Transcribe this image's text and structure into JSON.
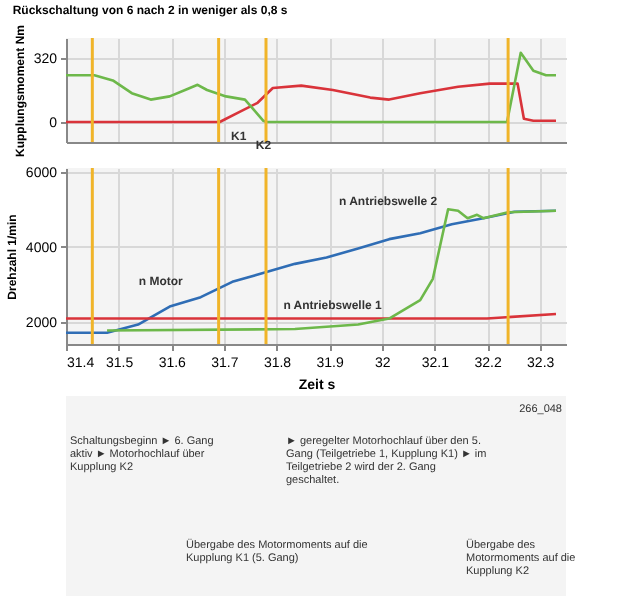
{
  "chart_data": [
    {
      "type": "line",
      "title": "Rückschaltung von 6 nach 2 in weniger als 0,8 s",
      "ylabel": "Kupplungsmoment Nm",
      "xlim": [
        31.4,
        32.35
      ],
      "xticks": [
        31.4,
        31.5,
        31.6,
        31.7,
        31.8,
        31.9,
        32,
        32.1,
        32.2,
        32.3
      ],
      "ylim": [
        -100,
        420
      ],
      "yticks": [
        0,
        320
      ],
      "grid": true,
      "tick_labels": "y",
      "ref_lines": [
        {
          "axis": "x",
          "value": 31.45,
          "color": "#f0b429"
        },
        {
          "axis": "x",
          "value": 31.69,
          "color": "#f0b429"
        },
        {
          "axis": "x",
          "value": 31.78,
          "color": "#f0b429"
        },
        {
          "axis": "x",
          "value": 32.24,
          "color": "#f0b429"
        }
      ],
      "series": [
        {
          "name": "K1",
          "color": "#d9333a",
          "x": [
            31.4,
            31.692,
            31.728,
            31.764,
            31.793,
            31.847,
            31.907,
            31.978,
            32.014,
            32.073,
            32.145,
            32.205,
            32.258,
            32.27,
            32.288,
            32.331
          ],
          "values": [
            0,
            0,
            48,
            96,
            170,
            182,
            160,
            122,
            112,
            144,
            176,
            192,
            192,
            16,
            6,
            6
          ]
        },
        {
          "name": "K2",
          "color": "#6db84a",
          "x": [
            31.4,
            31.454,
            31.489,
            31.525,
            31.561,
            31.597,
            31.632,
            31.65,
            31.668,
            31.704,
            31.74,
            31.775,
            31.781,
            32.238,
            32.264,
            32.288,
            32.312,
            32.331
          ],
          "values": [
            234,
            234,
            208,
            144,
            112,
            128,
            166,
            186,
            160,
            128,
            112,
            6,
            0,
            0,
            346,
            256,
            234,
            234
          ]
        }
      ]
    },
    {
      "type": "line",
      "xlabel": "Zeit s",
      "ylabel": "Drehzahl 1/min",
      "xlim": [
        31.4,
        32.35
      ],
      "xticks": [
        31.4,
        31.5,
        31.6,
        31.7,
        31.8,
        31.9,
        32,
        32.1,
        32.2,
        32.3
      ],
      "ylim": [
        1400,
        6100
      ],
      "yticks": [
        2000,
        4000,
        6000
      ],
      "grid": true,
      "ref_lines": [
        {
          "axis": "x",
          "value": 31.45,
          "color": "#f0b429"
        },
        {
          "axis": "x",
          "value": 31.69,
          "color": "#f0b429"
        },
        {
          "axis": "x",
          "value": 31.78,
          "color": "#f0b429"
        },
        {
          "axis": "x",
          "value": 32.24,
          "color": "#f0b429"
        }
      ],
      "series": [
        {
          "name": "n Motor",
          "color": "#2f6db5",
          "x": [
            31.4,
            31.478,
            31.537,
            31.597,
            31.656,
            31.716,
            31.776,
            31.835,
            31.895,
            31.955,
            32.014,
            32.073,
            32.133,
            32.193,
            32.252,
            32.331
          ],
          "values": [
            1700,
            1700,
            1920,
            2400,
            2650,
            3060,
            3300,
            3540,
            3710,
            3950,
            4200,
            4360,
            4600,
            4760,
            4930,
            4960
          ]
        },
        {
          "name": "n Antriebswelle 1",
          "color": "#d9333a",
          "x": [
            31.4,
            31.6,
            31.8,
            32.0,
            32.2,
            32.331
          ],
          "values": [
            2080,
            2080,
            2080,
            2080,
            2080,
            2200
          ]
        },
        {
          "name": "n Antriebswelle 2",
          "color": "#6db84a",
          "x": [
            31.478,
            31.835,
            31.955,
            32.014,
            32.073,
            32.097,
            32.126,
            32.145,
            32.163,
            32.181,
            32.193,
            32.24,
            32.331
          ],
          "values": [
            1760,
            1800,
            1920,
            2080,
            2570,
            3140,
            5000,
            4960,
            4760,
            4850,
            4760,
            4920,
            4960
          ]
        }
      ],
      "annotations": [
        "266_048",
        "Schaltungsbeginn ► 6. Gang aktiv ► Motorhochlauf über Kupplung K2",
        "► geregelter Motorhochlauf über den 5. Gang (Teilgetriebe 1, Kupplung K1) ► im Teilgetriebe 2 wird der 2. Gang geschaltet.",
        "Übergabe des Motormoments auf die Kupplung K1 (5. Gang)",
        "Übergabe des Motormoments auf die Kupplung K2"
      ]
    }
  ]
}
